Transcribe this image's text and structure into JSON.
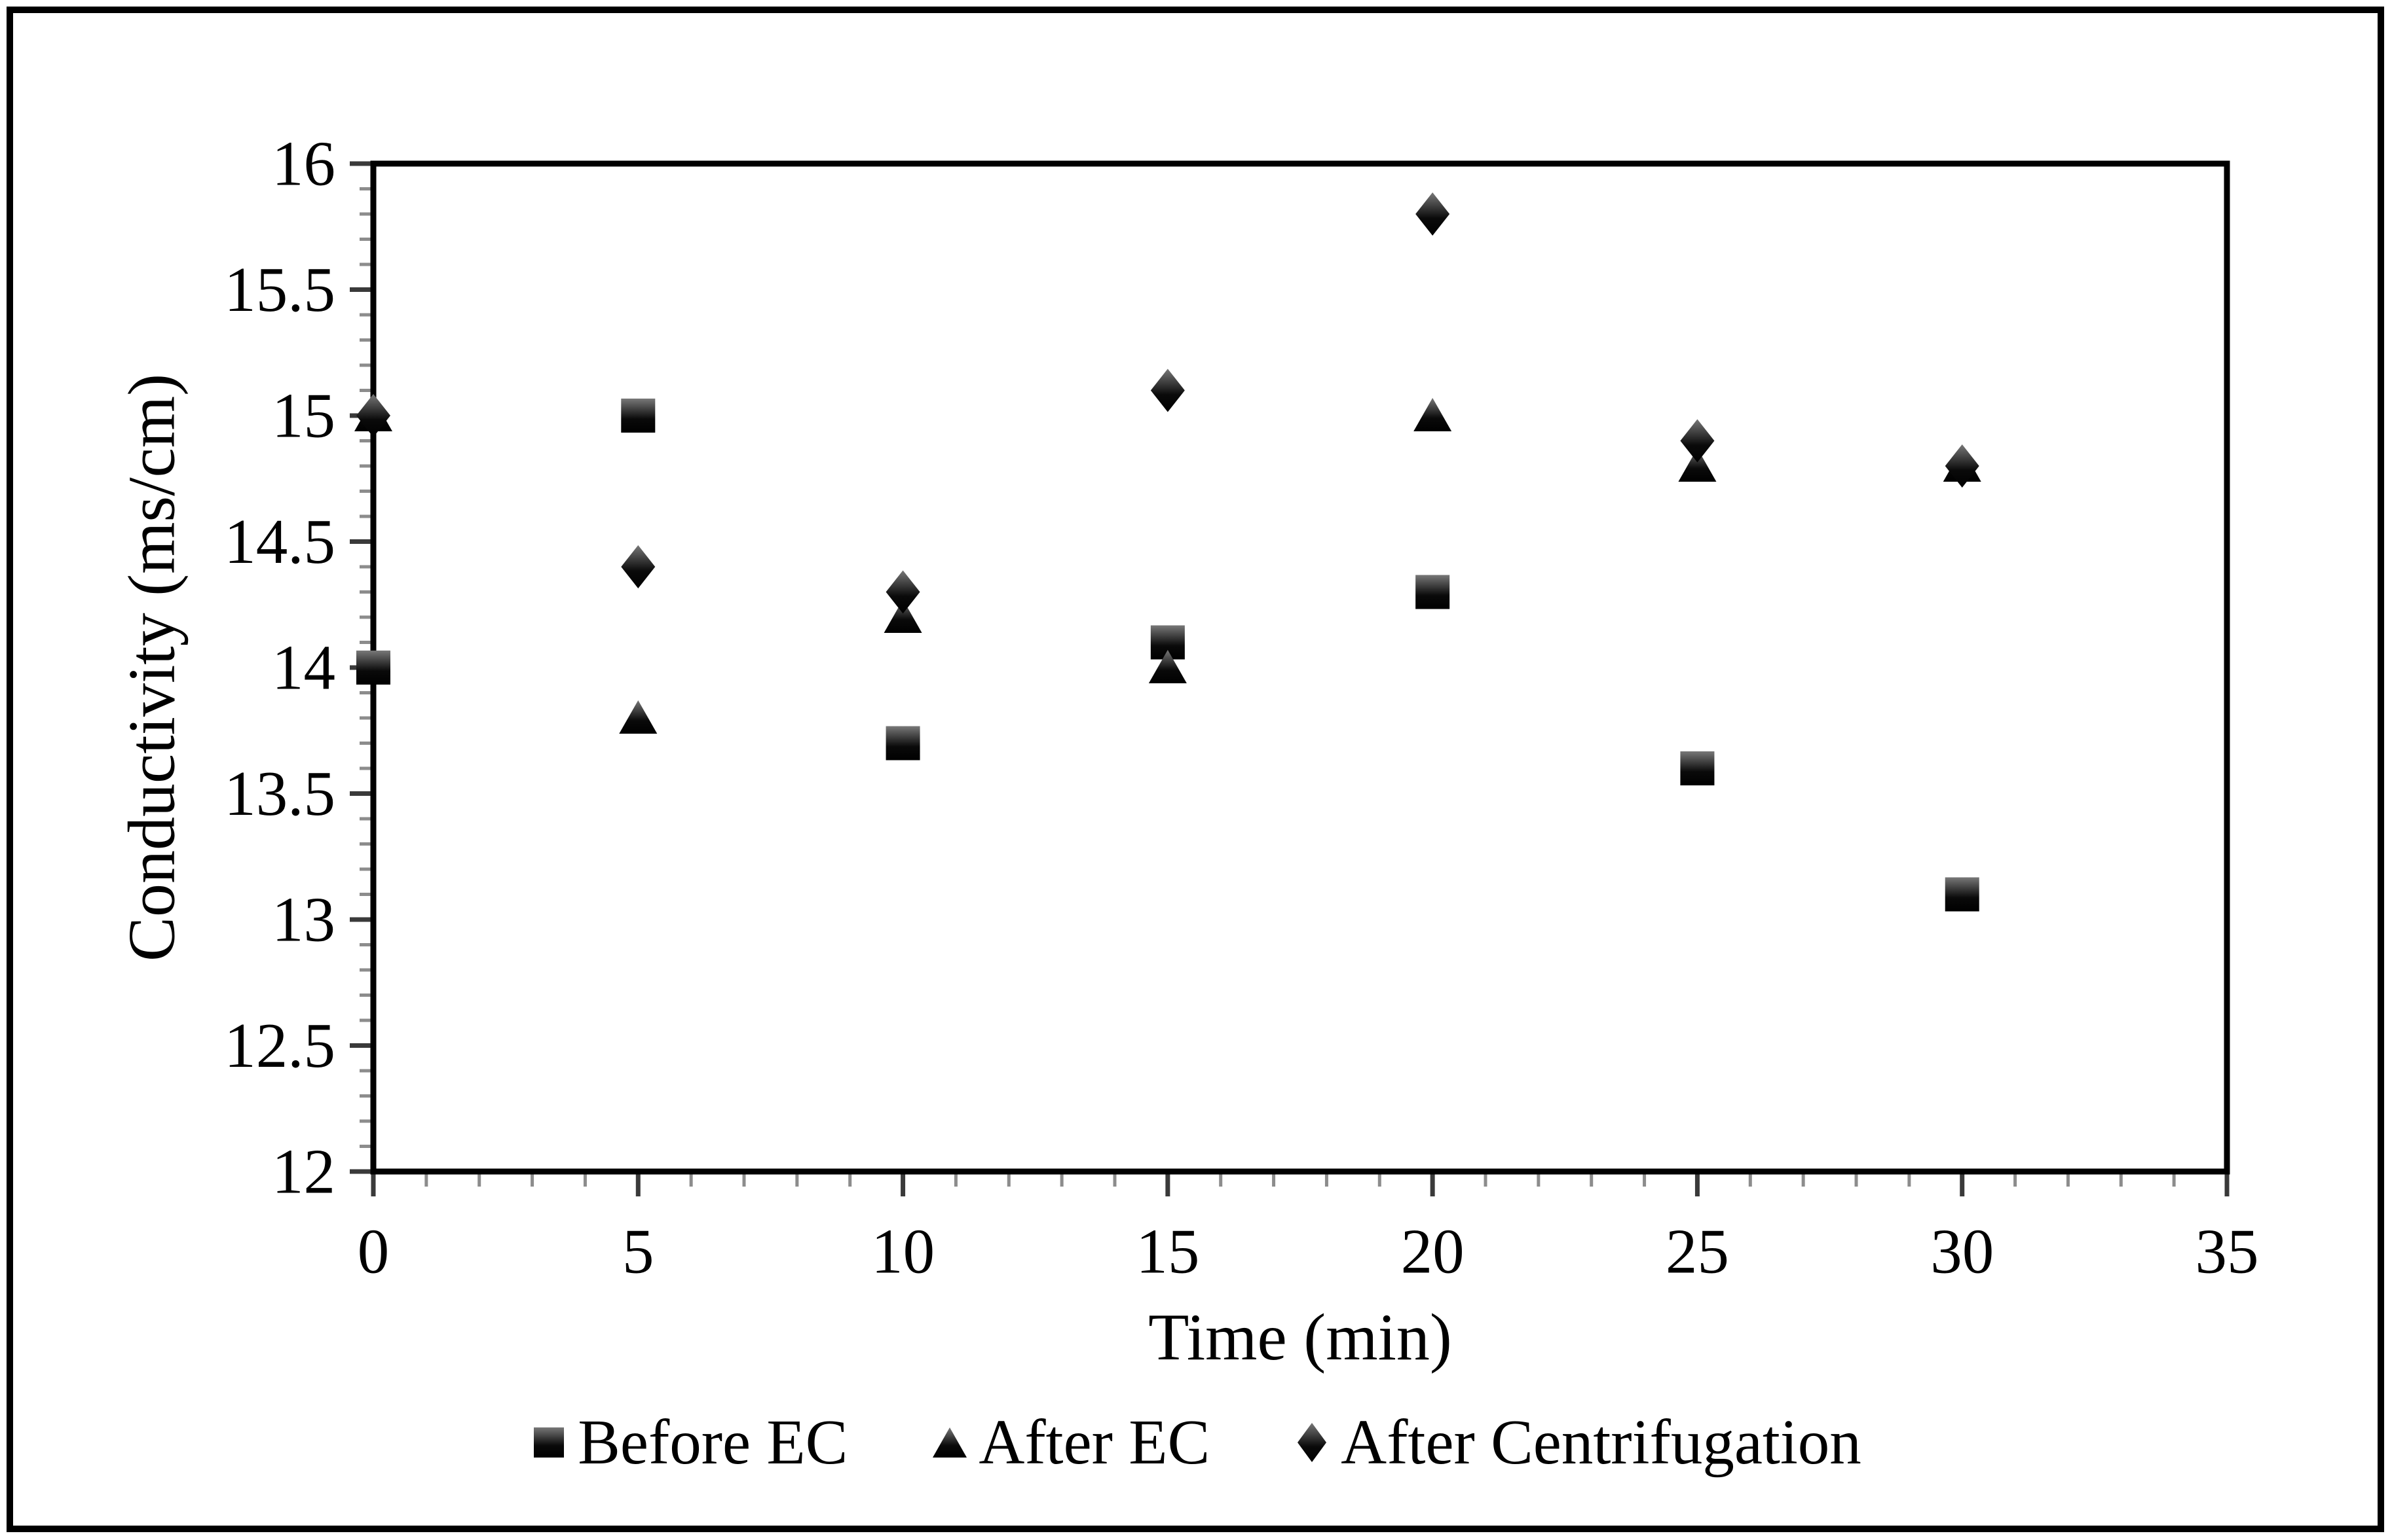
{
  "figure": {
    "background": "#ffffff",
    "border_color": "#000000",
    "text_color": "#000000",
    "minor_tick_color": "#8c8c8c",
    "major_tick_color": "#3a3a3a"
  },
  "chart_data": {
    "type": "scatter",
    "title": "",
    "xlabel": "Time (min)",
    "ylabel": "Conductivity (ms/cm)",
    "xlim": [
      0,
      35
    ],
    "ylim": [
      12,
      16
    ],
    "x_major_step": 5,
    "x_minor_step": 1,
    "y_major_step": 0.5,
    "y_minor_step": 0.1,
    "grid": false,
    "legend_position": "bottom",
    "x": [
      0,
      5,
      10,
      15,
      20,
      25,
      30
    ],
    "x_tick_labels": [
      "0",
      "5",
      "10",
      "15",
      "20",
      "25",
      "30",
      "35"
    ],
    "y_tick_labels": [
      "12",
      "12.5",
      "13",
      "13.5",
      "14",
      "14.5",
      "15",
      "15.5",
      "16"
    ],
    "series": [
      {
        "name": "Before EC",
        "marker": "square",
        "values": [
          14.0,
          15.0,
          13.7,
          14.1,
          14.3,
          13.6,
          13.1
        ]
      },
      {
        "name": "After EC",
        "marker": "triangle",
        "values": [
          15.0,
          13.8,
          14.2,
          14.0,
          15.0,
          14.8,
          14.8
        ]
      },
      {
        "name": "After Centrifugation",
        "marker": "diamond",
        "values": [
          15.0,
          14.4,
          14.3,
          15.1,
          15.8,
          14.9,
          14.8
        ]
      }
    ],
    "marker_color": "#000000",
    "marker_gradient_top": "#787878"
  }
}
